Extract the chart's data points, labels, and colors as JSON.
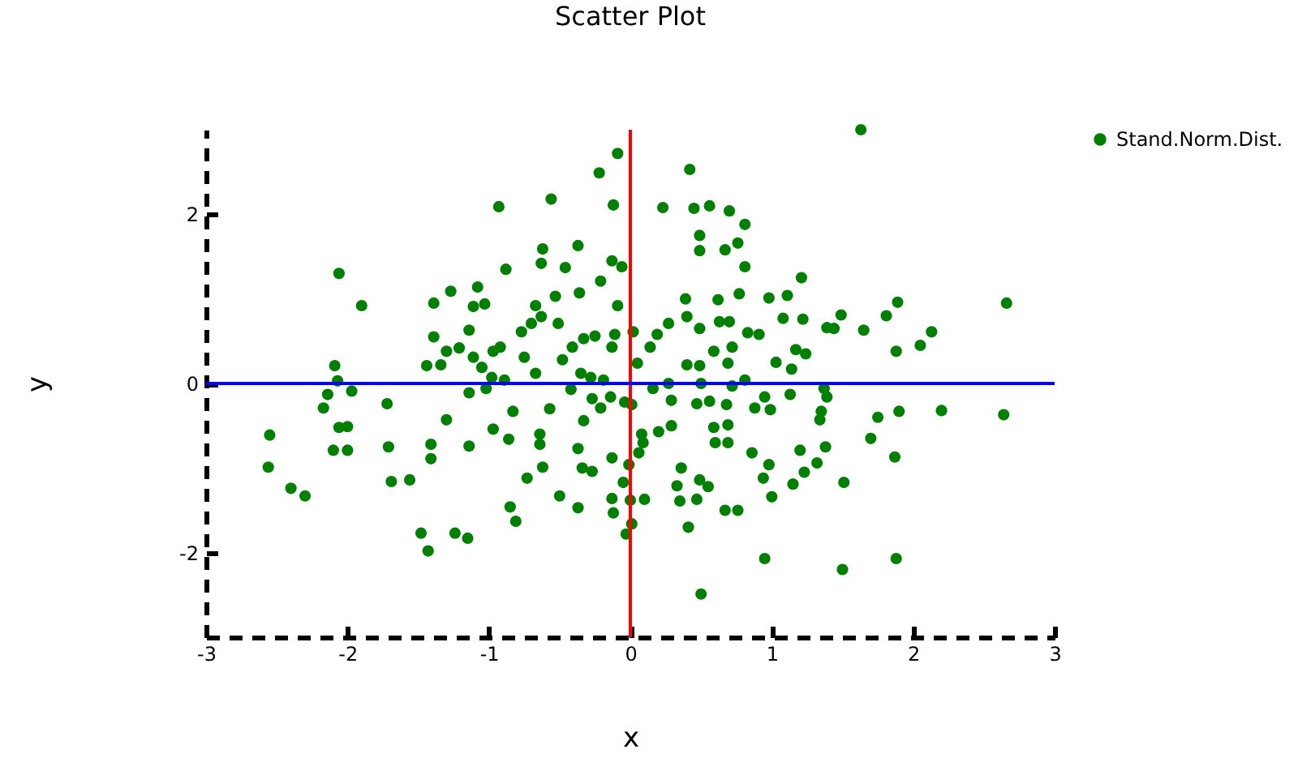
{
  "chart_data": {
    "type": "scatter",
    "title": "Scatter Plot",
    "xlabel": "x",
    "ylabel": "y",
    "x": [
      1.63,
      -0.09,
      -0.22,
      0.42,
      -0.93,
      -0.56,
      -0.12,
      0.23,
      0.45,
      0.56,
      0.7,
      0.81,
      0.49,
      0.49,
      0.67,
      0.76,
      0.81,
      1.21,
      -0.62,
      -0.63,
      -0.37,
      -0.46,
      -0.88,
      -0.13,
      -0.06,
      -0.21,
      -0.36,
      -2.06,
      -1.9,
      -1.39,
      -1.27,
      -1.08,
      -1.11,
      -1.03,
      -0.67,
      -0.53,
      -0.09,
      0.39,
      0.62,
      0.77,
      0.98,
      1.11,
      1.49,
      1.81,
      1.89,
      2.66,
      2.13,
      2.05,
      1.88,
      1.65,
      1.39,
      1.44,
      1.08,
      1.22,
      1.17,
      1.24,
      1.03,
      1.14,
      0.91,
      0.83,
      0.63,
      0.7,
      0.4,
      0.49,
      0.59,
      0.72,
      0.69,
      0.49,
      0.4,
      0.27,
      0.19,
      0.14,
      0.05,
      0.02,
      -0.11,
      -0.13,
      -0.25,
      -0.33,
      -0.41,
      -0.48,
      -0.51,
      -0.63,
      -0.7,
      -0.77,
      -0.75,
      -0.92,
      -0.97,
      -1.14,
      -1.11,
      -1.05,
      -1.21,
      -1.3,
      -1.39,
      -1.44,
      -1.34,
      -2.09,
      -2.07,
      -1.97,
      -2.14,
      -2.17,
      -2.06,
      -2.0,
      -2.1,
      -2.0,
      -2.55,
      -2.56,
      -2.4,
      -2.3,
      -1.72,
      -1.71,
      -1.69,
      -1.56,
      -1.3,
      -1.14,
      -1.14,
      -1.41,
      -1.41,
      -1.48,
      -1.43,
      -1.24,
      -1.15,
      -0.97,
      -0.86,
      -0.83,
      -0.85,
      -0.81,
      -0.73,
      -0.64,
      -0.64,
      -0.62,
      -0.57,
      -0.5,
      -0.37,
      -0.37,
      -0.34,
      -0.27,
      -0.33,
      -0.27,
      -0.21,
      -0.14,
      -0.13,
      -0.13,
      -0.12,
      -0.05,
      -0.04,
      0.01,
      -0.01,
      0.0,
      -0.03,
      0.01,
      0.1,
      0.06,
      0.08,
      0.09,
      0.2,
      0.29,
      0.29,
      0.36,
      0.33,
      0.35,
      0.41,
      0.47,
      0.49,
      0.55,
      0.5,
      0.47,
      0.56,
      0.59,
      0.6,
      0.68,
      0.69,
      0.69,
      0.67,
      0.76,
      0.86,
      0.88,
      0.95,
      0.99,
      0.94,
      0.98,
      1.0,
      0.95,
      1.13,
      1.2,
      1.23,
      1.15,
      1.32,
      1.38,
      1.35,
      1.34,
      1.37,
      1.39,
      1.51,
      1.5,
      1.7,
      1.75,
      1.9,
      1.87,
      1.88,
      2.2,
      2.64,
      0.81,
      0.72,
      0.5,
      0.27,
      0.16,
      -0.19,
      -0.28,
      -0.35,
      -0.42,
      -0.67,
      -0.89,
      -0.98,
      -1.02
    ],
    "series": [
      {
        "name": "Stand.Norm.Dist.",
        "color": "#008000",
        "values": [
          3.0,
          2.72,
          2.49,
          2.53,
          2.09,
          2.18,
          2.11,
          2.08,
          2.07,
          2.1,
          2.04,
          1.88,
          1.75,
          1.57,
          1.58,
          1.66,
          1.38,
          1.25,
          1.59,
          1.42,
          1.63,
          1.37,
          1.35,
          1.45,
          1.38,
          1.21,
          1.07,
          1.3,
          0.92,
          0.95,
          1.09,
          1.14,
          0.91,
          0.94,
          0.92,
          1.03,
          0.92,
          1.0,
          0.99,
          1.06,
          1.01,
          1.04,
          0.81,
          0.8,
          0.96,
          0.95,
          0.61,
          0.45,
          0.38,
          0.63,
          0.66,
          0.65,
          0.77,
          0.76,
          0.4,
          0.35,
          0.25,
          0.17,
          0.58,
          0.6,
          0.73,
          0.73,
          0.79,
          0.65,
          0.38,
          0.43,
          0.24,
          0.21,
          0.22,
          0.71,
          0.58,
          0.43,
          0.24,
          0.61,
          0.58,
          0.43,
          0.56,
          0.53,
          0.43,
          0.28,
          0.71,
          0.79,
          0.71,
          0.61,
          0.31,
          0.43,
          0.38,
          0.63,
          0.31,
          0.19,
          0.42,
          0.38,
          0.55,
          0.21,
          0.22,
          0.21,
          0.03,
          -0.09,
          -0.13,
          -0.29,
          -0.52,
          -0.51,
          -0.79,
          -0.79,
          -0.61,
          -0.99,
          -1.24,
          -1.33,
          -0.24,
          -0.75,
          -1.16,
          -1.14,
          -0.43,
          -0.11,
          -0.74,
          -0.72,
          -0.89,
          -1.77,
          -1.98,
          -1.77,
          -1.83,
          -0.54,
          -0.66,
          -0.33,
          -1.46,
          -1.63,
          -1.12,
          -0.6,
          -0.72,
          -0.99,
          -0.3,
          -1.33,
          -1.47,
          -0.77,
          -1.0,
          -1.04,
          -0.44,
          -0.18,
          -0.29,
          -0.16,
          -0.88,
          -1.36,
          -1.53,
          -1.17,
          -0.22,
          -0.25,
          -0.96,
          -1.38,
          -1.78,
          -1.66,
          -1.37,
          -0.82,
          -0.6,
          -0.7,
          -0.57,
          -0.5,
          -0.2,
          -1.0,
          -1.21,
          -1.39,
          -1.7,
          -1.37,
          -1.14,
          -1.22,
          -2.49,
          -0.24,
          -0.21,
          -0.52,
          -0.7,
          -0.25,
          -0.49,
          -0.7,
          -1.5,
          -1.5,
          -0.82,
          -0.29,
          -0.16,
          -0.31,
          -1.12,
          -0.96,
          -1.34,
          -2.07,
          -0.13,
          -0.79,
          -1.05,
          -1.19,
          -0.94,
          -0.75,
          -0.33,
          -0.43,
          -0.06,
          -0.16,
          -1.17,
          -2.2,
          -0.65,
          -0.4,
          -0.33,
          -0.87,
          -2.07,
          -0.32,
          -0.37,
          0.04,
          -0.03,
          0.0,
          0.0,
          -0.06,
          0.04,
          0.07,
          0.12,
          -0.07,
          0.12,
          0.04,
          0.07,
          -0.06
        ]
      }
    ],
    "xlim": [
      -3,
      3
    ],
    "ylim": [
      -3,
      3
    ],
    "xticks": [
      -3,
      -2,
      -1,
      0,
      1,
      2,
      3
    ],
    "yticks": [
      -2,
      0,
      2
    ],
    "ref_lines": [
      {
        "axis": "x",
        "value": 0,
        "color": "#ff0000"
      },
      {
        "axis": "y",
        "value": 0,
        "color": "#0000ff"
      }
    ],
    "legend": "right",
    "marker": "circle",
    "grid": false
  }
}
